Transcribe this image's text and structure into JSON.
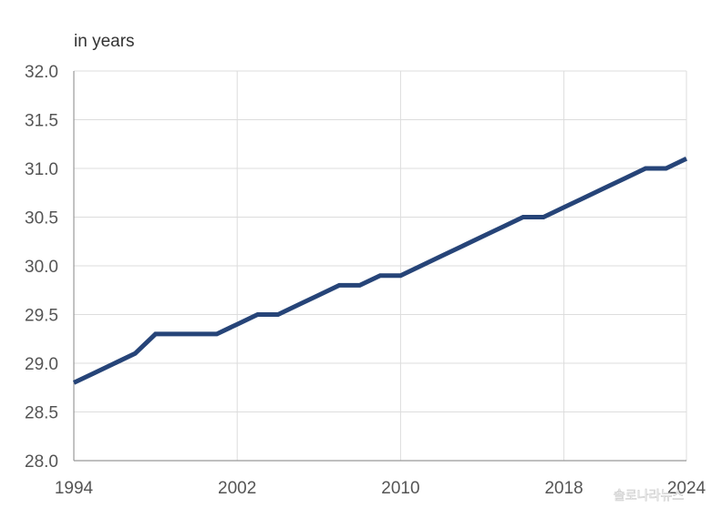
{
  "chart_data": {
    "type": "line",
    "ylabel": "in years",
    "ylim": [
      28.0,
      32.0
    ],
    "yticks": [
      "28.0",
      "28.5",
      "29.0",
      "29.5",
      "30.0",
      "30.5",
      "31.0",
      "31.5",
      "32.0"
    ],
    "xlim": [
      1994,
      2024
    ],
    "xticks": [
      "1994",
      "2002",
      "2010",
      "2018",
      "2024"
    ],
    "grid": true,
    "line_color": "#264478",
    "series": [
      {
        "x": [
          1994,
          1995,
          1996,
          1997,
          1998,
          1999,
          2000,
          2001,
          2002,
          2003,
          2004,
          2005,
          2006,
          2007,
          2008,
          2009,
          2010,
          2011,
          2012,
          2013,
          2014,
          2015,
          2016,
          2017,
          2018,
          2019,
          2020,
          2021,
          2022,
          2023,
          2024
        ],
        "values": [
          28.8,
          28.9,
          29.0,
          29.1,
          29.3,
          29.3,
          29.3,
          29.3,
          29.4,
          29.5,
          29.5,
          29.6,
          29.7,
          29.8,
          29.8,
          29.9,
          29.9,
          30.0,
          30.1,
          30.2,
          30.3,
          30.4,
          30.5,
          30.5,
          30.6,
          30.7,
          30.8,
          30.9,
          31.0,
          31.0,
          31.1
        ]
      }
    ]
  },
  "watermark": "솔로나라뉴스"
}
